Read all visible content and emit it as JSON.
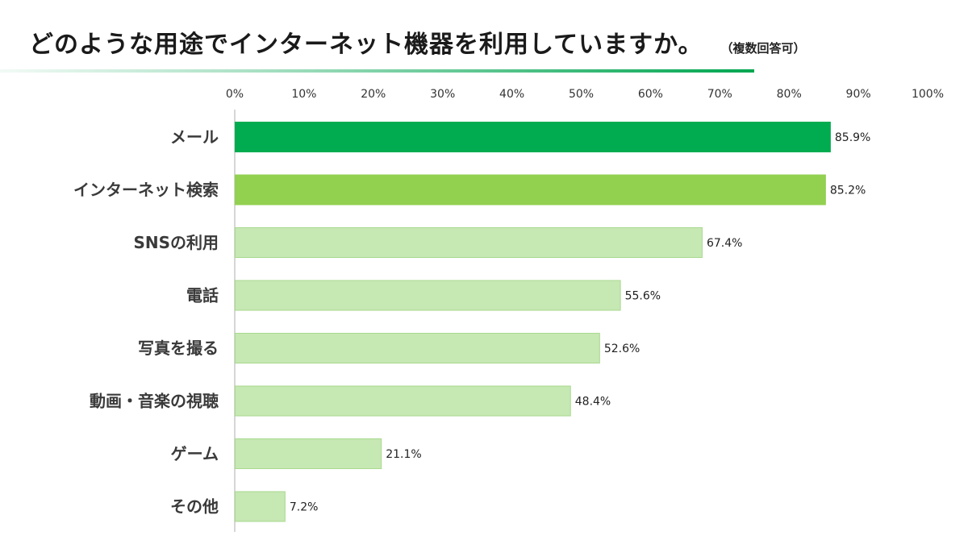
{
  "title": "どのような用途でインターネット機器を利用していますか。",
  "subtitle": "（複数回答可）",
  "colors": {
    "top1": "#00ac4f",
    "top2": "#92d050",
    "rest": "#c6e8b3",
    "rest_border": "#a9d98f",
    "axis": "#c8c8c8"
  },
  "chart_data": {
    "type": "bar",
    "orientation": "horizontal",
    "title": "どのような用途でインターネット機器を利用していますか。",
    "subtitle": "（複数回答可）",
    "categories": [
      "メール",
      "インターネット検索",
      "SNSの利用",
      "電話",
      "写真を撮る",
      "動画・音楽の視聴",
      "ゲーム",
      "その他"
    ],
    "values": [
      85.9,
      85.2,
      67.4,
      55.6,
      52.6,
      48.4,
      21.1,
      7.2
    ],
    "value_labels": [
      "85.9%",
      "85.2%",
      "67.4%",
      "55.6%",
      "52.6%",
      "48.4%",
      "21.1%",
      "7.2%"
    ],
    "xlim": [
      0,
      100
    ],
    "xticks": [
      "0%",
      "10%",
      "20%",
      "30%",
      "40%",
      "50%",
      "60%",
      "70%",
      "80%",
      "90%",
      "100%"
    ],
    "xlabel": "",
    "ylabel": "",
    "grid": false,
    "tick_position": "top"
  }
}
